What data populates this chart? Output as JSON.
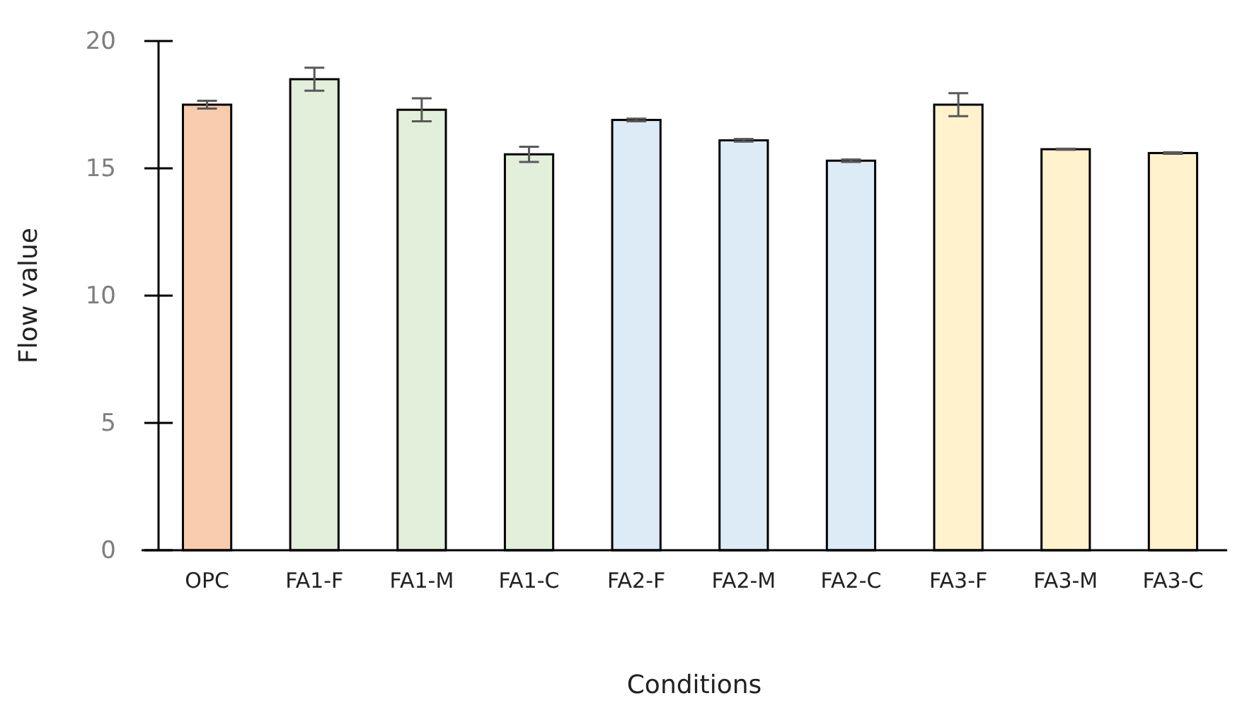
{
  "chart_data": {
    "type": "bar",
    "xlabel": "Conditions",
    "ylabel": "Flow value",
    "categories": [
      "OPC",
      "FA1-F",
      "FA1-M",
      "FA1-C",
      "FA2-F",
      "FA2-M",
      "FA2-C",
      "FA3-F",
      "FA3-M",
      "FA3-C"
    ],
    "values": [
      17.5,
      18.5,
      17.3,
      15.55,
      16.9,
      16.1,
      15.3,
      17.5,
      15.75,
      15.6
    ],
    "errors": [
      0.15,
      0.45,
      0.45,
      0.3,
      0.05,
      0.05,
      0.05,
      0.45,
      0.02,
      0.03
    ],
    "colors": [
      "#f8cbad",
      "#e2efda",
      "#e2efda",
      "#e2efda",
      "#ddebf7",
      "#ddebf7",
      "#ddebf7",
      "#fff2cc",
      "#fff2cc",
      "#fff2cc"
    ],
    "ylim": [
      0,
      20
    ],
    "yticks": [
      0,
      5,
      10,
      15,
      20
    ],
    "grid": false
  }
}
